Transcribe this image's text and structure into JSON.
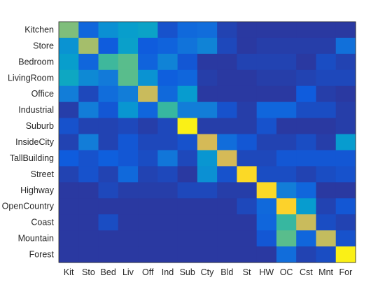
{
  "chart_data": {
    "type": "heatmap",
    "colormap": "parula",
    "value_range": [
      0,
      1
    ],
    "row_labels": [
      "Kitchen",
      "Store",
      "Bedroom",
      "LivingRoom",
      "Office",
      "Industrial",
      "Suburb",
      "InsideCity",
      "TallBuilding",
      "Street",
      "Highway",
      "OpenCountry",
      "Coast",
      "Mountain",
      "Forest"
    ],
    "col_labels": [
      "Kit",
      "Sto",
      "Bed",
      "Liv",
      "Off",
      "Ind",
      "Sub",
      "Cty",
      "Bld",
      "St",
      "HW",
      "OC",
      "Cst",
      "Mnt",
      "For"
    ],
    "values": [
      [
        0.55,
        0.13,
        0.26,
        0.31,
        0.33,
        0.08,
        0.14,
        0.15,
        0.05,
        0.03,
        0.03,
        0.03,
        0.03,
        0.03,
        0.03
      ],
      [
        0.27,
        0.6,
        0.1,
        0.32,
        0.1,
        0.12,
        0.17,
        0.22,
        0.06,
        0.03,
        0.04,
        0.04,
        0.04,
        0.04,
        0.16
      ],
      [
        0.31,
        0.13,
        0.46,
        0.5,
        0.12,
        0.22,
        0.09,
        0.03,
        0.03,
        0.05,
        0.05,
        0.05,
        0.03,
        0.07,
        0.05
      ],
      [
        0.35,
        0.24,
        0.19,
        0.5,
        0.27,
        0.11,
        0.13,
        0.04,
        0.03,
        0.03,
        0.04,
        0.04,
        0.05,
        0.06,
        0.06
      ],
      [
        0.2,
        0.06,
        0.15,
        0.2,
        0.66,
        0.14,
        0.3,
        0.03,
        0.03,
        0.03,
        0.03,
        0.03,
        0.1,
        0.04,
        0.03
      ],
      [
        0.04,
        0.2,
        0.09,
        0.28,
        0.13,
        0.45,
        0.2,
        0.2,
        0.08,
        0.04,
        0.13,
        0.13,
        0.07,
        0.07,
        0.04
      ],
      [
        0.08,
        0.05,
        0.05,
        0.06,
        0.04,
        0.06,
        0.95,
        0.04,
        0.04,
        0.04,
        0.08,
        0.03,
        0.03,
        0.03,
        0.04
      ],
      [
        0.05,
        0.2,
        0.05,
        0.09,
        0.06,
        0.06,
        0.08,
        0.68,
        0.15,
        0.09,
        0.05,
        0.05,
        0.07,
        0.04,
        0.3
      ],
      [
        0.1,
        0.08,
        0.11,
        0.09,
        0.07,
        0.18,
        0.06,
        0.28,
        0.68,
        0.06,
        0.06,
        0.09,
        0.09,
        0.09,
        0.09
      ],
      [
        0.05,
        0.08,
        0.05,
        0.14,
        0.05,
        0.06,
        0.03,
        0.26,
        0.08,
        0.85,
        0.07,
        0.07,
        0.05,
        0.07,
        0.08
      ],
      [
        0.03,
        0.03,
        0.06,
        0.04,
        0.04,
        0.04,
        0.06,
        0.06,
        0.04,
        0.04,
        0.85,
        0.2,
        0.13,
        0.03,
        0.03
      ],
      [
        0.03,
        0.03,
        0.03,
        0.03,
        0.03,
        0.03,
        0.03,
        0.03,
        0.03,
        0.06,
        0.14,
        0.82,
        0.3,
        0.05,
        0.09
      ],
      [
        0.03,
        0.03,
        0.07,
        0.03,
        0.03,
        0.03,
        0.03,
        0.03,
        0.03,
        0.03,
        0.13,
        0.45,
        0.66,
        0.07,
        0.05
      ],
      [
        0.03,
        0.03,
        0.03,
        0.03,
        0.03,
        0.03,
        0.03,
        0.03,
        0.03,
        0.03,
        0.09,
        0.5,
        0.13,
        0.65,
        0.08
      ],
      [
        0.03,
        0.03,
        0.03,
        0.03,
        0.03,
        0.03,
        0.03,
        0.03,
        0.03,
        0.03,
        0.03,
        0.15,
        0.05,
        0.07,
        0.95
      ]
    ]
  }
}
